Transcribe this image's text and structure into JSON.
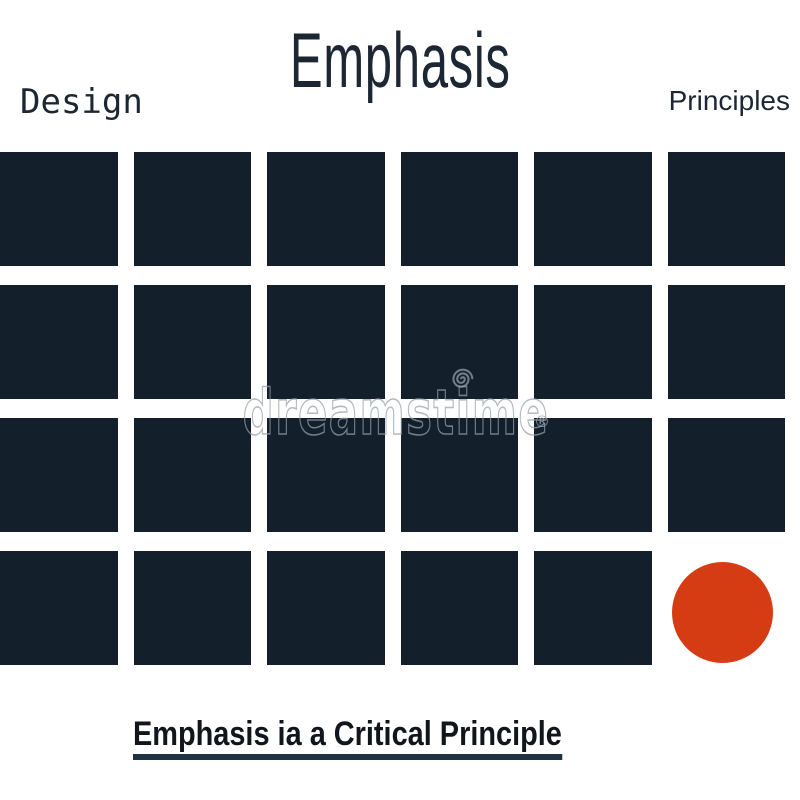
{
  "header": {
    "title": "Emphasis",
    "left_label": "Design",
    "right_label": "Principles"
  },
  "grid": {
    "rows": 4,
    "columns": 6,
    "dark_squares_count": 23,
    "accent": {
      "shape": "circle",
      "row": 4,
      "column": 6
    }
  },
  "watermark": {
    "text": "dreamstime",
    "registered_symbol": "®",
    "logo_icon": "spiral-icon"
  },
  "caption": {
    "text": "Emphasis ia a Critical Principle"
  },
  "colors": {
    "page_bg": "#ffffff",
    "square": "#13202b",
    "circle": "#d63c14",
    "text_dark": "#1d2733",
    "caption_text": "#10161c",
    "caption_underline": "#1d3242",
    "watermark": "#96a1ab"
  }
}
